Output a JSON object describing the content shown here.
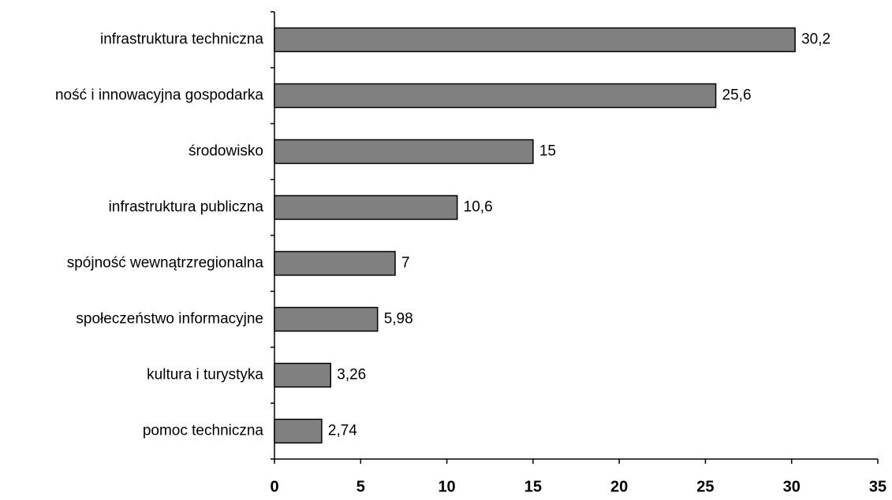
{
  "chart_data": {
    "type": "bar",
    "orientation": "horizontal",
    "categories": [
      "infrastruktura techniczna",
      "ność i innowacyjna gospodarka",
      "środowisko",
      "infrastruktura publiczna",
      "spójność wewnątrzregionalna",
      "społeczeństwo informacyjne",
      "kultura i turystyka",
      "pomoc techniczna"
    ],
    "values": [
      30.2,
      25.6,
      15,
      10.6,
      7,
      5.98,
      3.26,
      2.74
    ],
    "value_labels": [
      "30,2",
      "25,6",
      "15",
      "10,6",
      "7",
      "5,98",
      "3,26",
      "2,74"
    ],
    "color": "#808080",
    "xlim": [
      0,
      35
    ],
    "xticks": [
      0,
      5,
      10,
      15,
      20,
      25,
      30,
      35
    ]
  }
}
